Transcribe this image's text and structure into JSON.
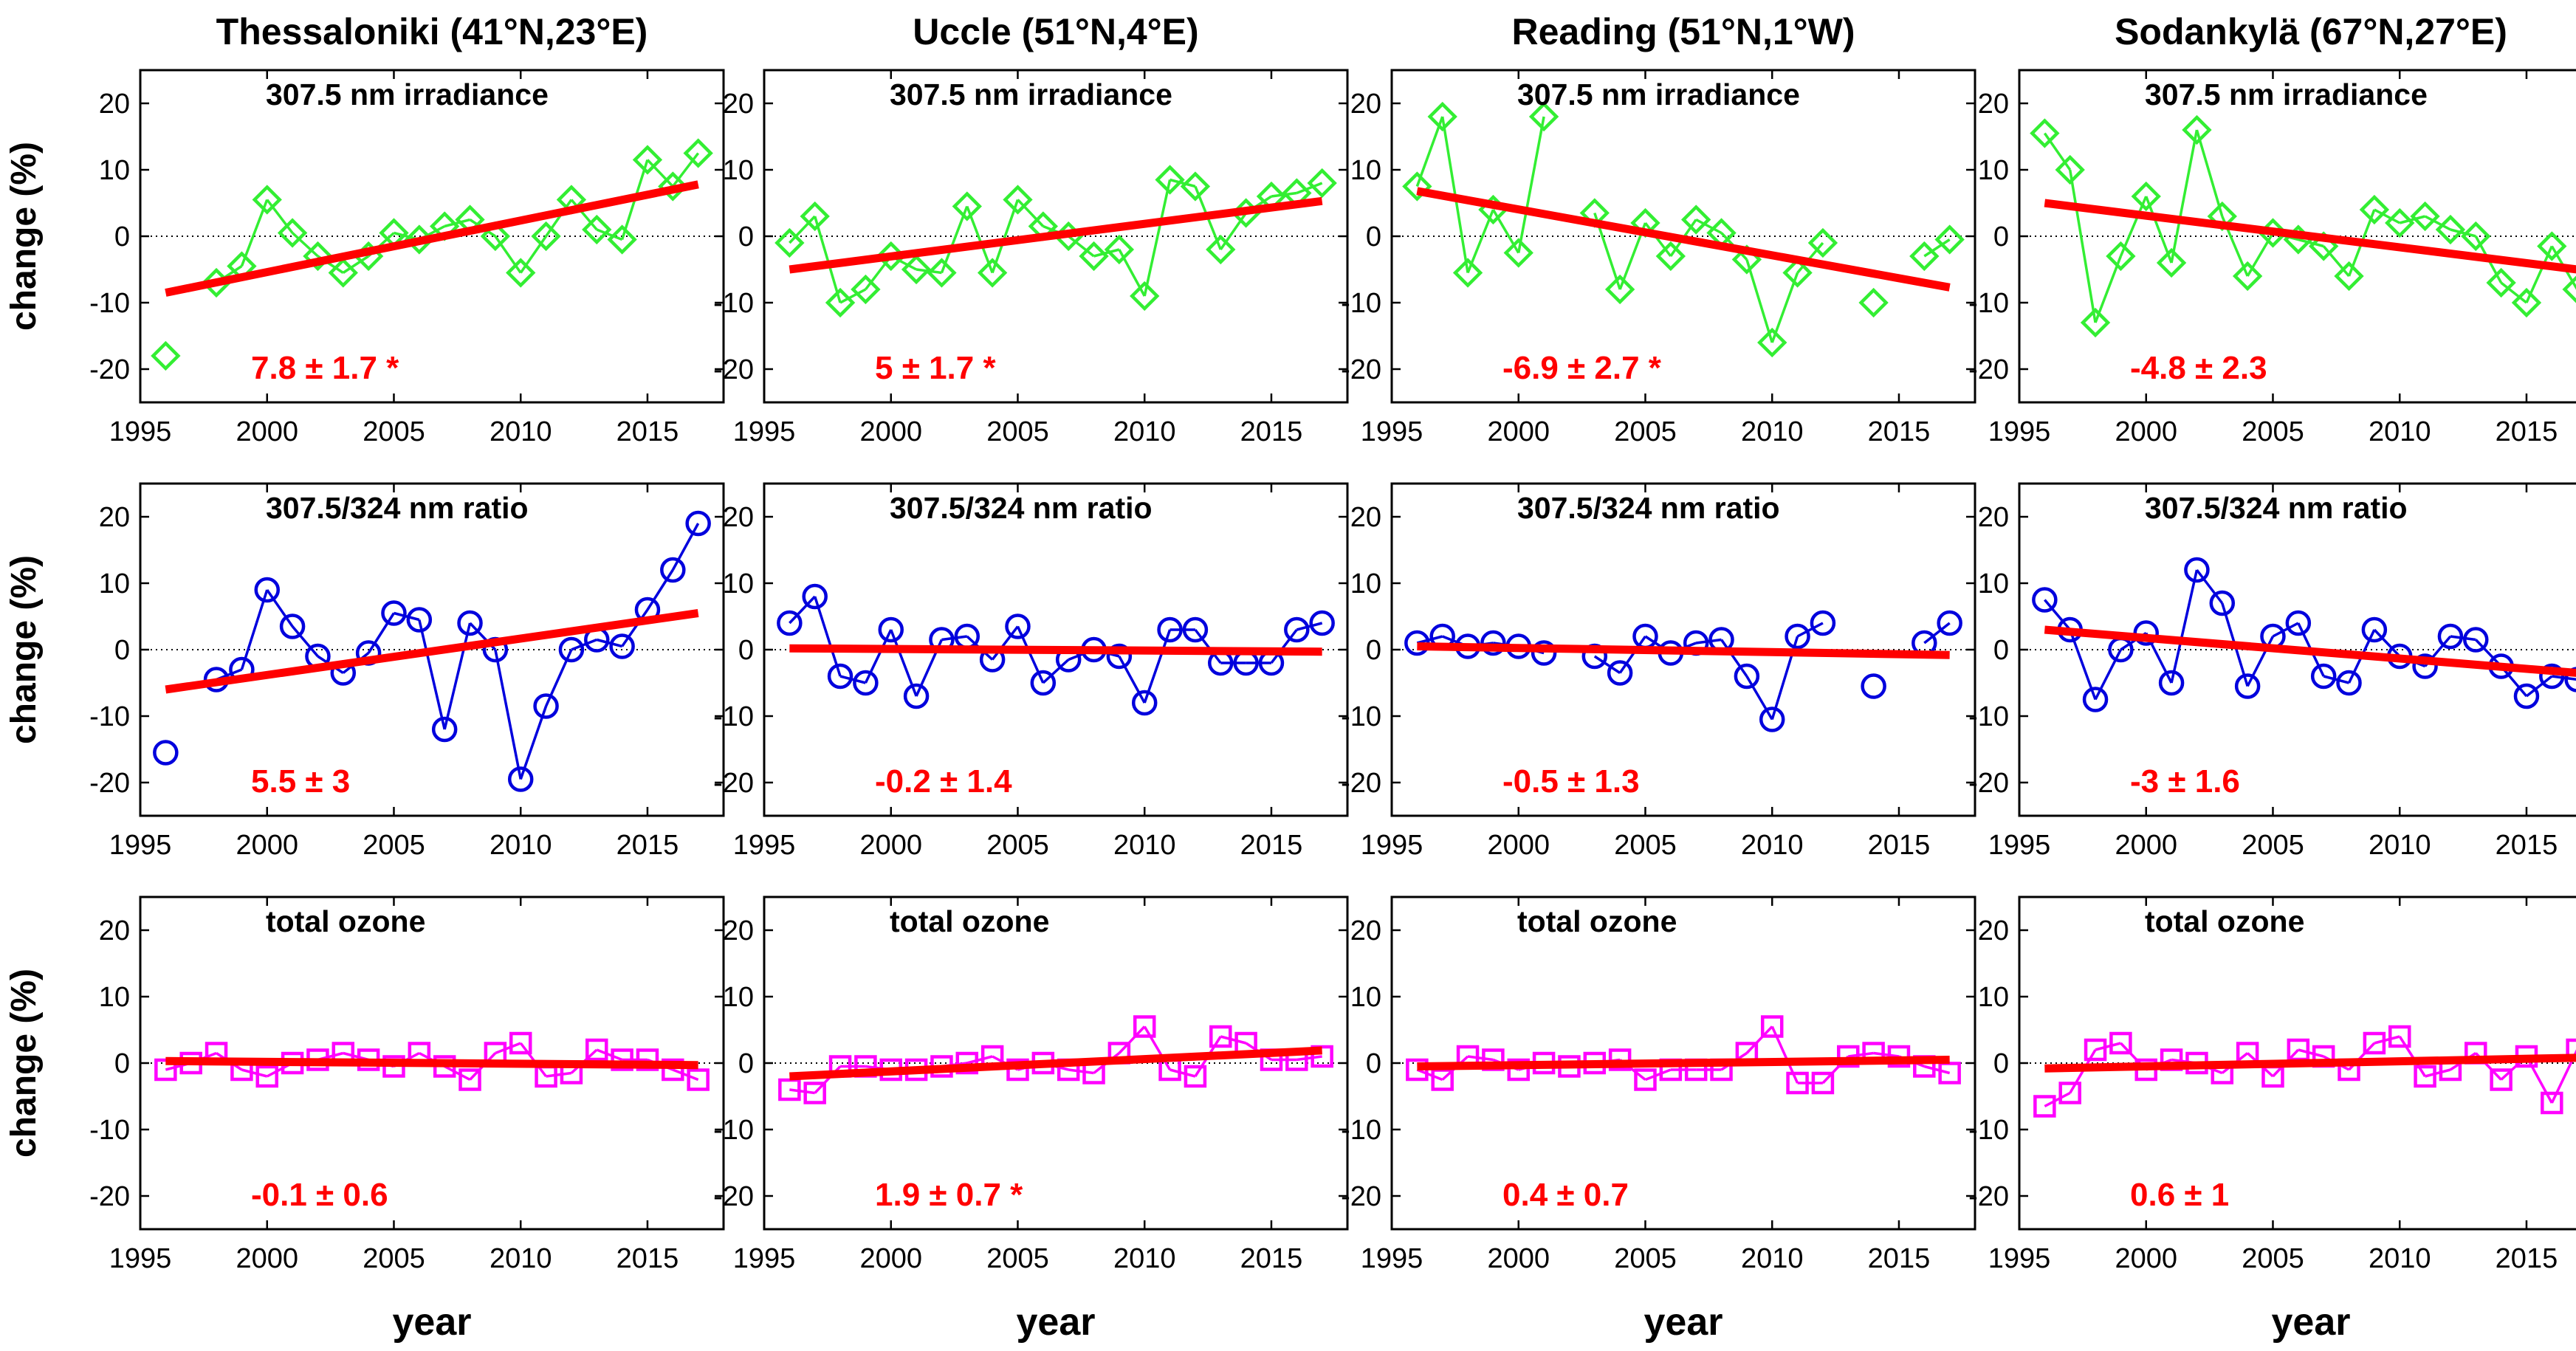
{
  "figure": {
    "xlabel": "year",
    "ylabel": "change (%)",
    "colors": {
      "irradiance": "#33ee33",
      "ratio": "#0000dd",
      "ozone": "#ff00ff",
      "trend": "#ff0000",
      "trend_text": "#ff0000",
      "axis": "#000000"
    }
  },
  "chart_data": [
    {
      "type": "line",
      "row": 0,
      "col": 0,
      "station": "Thessaloniki (41°N,23°E)",
      "variable": "307.5 nm irradiance",
      "marker": "diamond",
      "color": "#33ee33",
      "trend_label": "7.8 ± 1.7 *",
      "trend_line": [
        [
          1996,
          -8.5
        ],
        [
          2017,
          7.8
        ]
      ],
      "xlim": [
        1995,
        2018
      ],
      "ylim": [
        -25,
        25
      ],
      "xticks": [
        1995,
        2000,
        2005,
        2010,
        2015
      ],
      "yticks": [
        -20,
        -10,
        0,
        10,
        20
      ],
      "x": [
        1996,
        1998,
        1999,
        2000,
        2001,
        2002,
        2003,
        2004,
        2005,
        2006,
        2007,
        2008,
        2009,
        2010,
        2011,
        2012,
        2013,
        2014,
        2015,
        2016,
        2017
      ],
      "y": [
        -18,
        -7,
        -4.5,
        5.5,
        0.5,
        -3,
        -5.5,
        -3,
        0.5,
        -0.5,
        1.5,
        2.5,
        0,
        -5.5,
        0,
        5.5,
        1,
        -0.5,
        11.5,
        7.5,
        12.5
      ],
      "connect": [
        false,
        false,
        true,
        true,
        true,
        true,
        true,
        true,
        true,
        true,
        true,
        true,
        true,
        true,
        true,
        true,
        true,
        true,
        true,
        true,
        true
      ]
    },
    {
      "type": "line",
      "row": 0,
      "col": 1,
      "station": "Uccle (51°N,4°E)",
      "variable": "307.5 nm irradiance",
      "marker": "diamond",
      "color": "#33ee33",
      "trend_label": "5 ± 1.7 *",
      "trend_line": [
        [
          1996,
          -5
        ],
        [
          2017,
          5.3
        ]
      ],
      "xlim": [
        1995,
        2018
      ],
      "ylim": [
        -25,
        25
      ],
      "xticks": [
        1995,
        2000,
        2005,
        2010,
        2015
      ],
      "yticks": [
        -20,
        -10,
        0,
        10,
        20
      ],
      "x": [
        1996,
        1997,
        1998,
        1999,
        2000,
        2001,
        2002,
        2003,
        2004,
        2005,
        2006,
        2007,
        2008,
        2009,
        2010,
        2011,
        2012,
        2013,
        2014,
        2015,
        2016,
        2017
      ],
      "y": [
        -1,
        3,
        -10,
        -8,
        -3,
        -5,
        -5.5,
        4.5,
        -5.5,
        5.5,
        1.5,
        0,
        -3,
        -2,
        -9,
        8.5,
        7.5,
        -2,
        3.5,
        6,
        6.5,
        8
      ],
      "connect": [
        false,
        true,
        true,
        true,
        true,
        true,
        true,
        true,
        true,
        true,
        true,
        true,
        true,
        true,
        true,
        true,
        true,
        true,
        true,
        true,
        true,
        true
      ]
    },
    {
      "type": "line",
      "row": 0,
      "col": 2,
      "station": "Reading (51°N,1°W)",
      "variable": "307.5 nm irradiance",
      "marker": "diamond",
      "color": "#33ee33",
      "trend_label": "-6.9 ± 2.7 *",
      "trend_line": [
        [
          1996,
          6.8
        ],
        [
          2017,
          -7.7
        ]
      ],
      "xlim": [
        1995,
        2018
      ],
      "ylim": [
        -25,
        25
      ],
      "xticks": [
        1995,
        2000,
        2005,
        2010,
        2015
      ],
      "yticks": [
        -20,
        -10,
        0,
        10,
        20
      ],
      "x": [
        1996,
        1997,
        1998,
        1999,
        2000,
        2001,
        2003,
        2004,
        2005,
        2006,
        2007,
        2008,
        2009,
        2010,
        2011,
        2012,
        2014,
        2016,
        2017
      ],
      "y": [
        7.5,
        18,
        -5.5,
        4,
        -2.5,
        18,
        3.5,
        -8,
        2,
        -3,
        2.5,
        0.5,
        -3.5,
        -16,
        -5.5,
        -1,
        -10,
        -3,
        -0.5
      ],
      "connect": [
        false,
        true,
        true,
        true,
        true,
        true,
        false,
        true,
        true,
        true,
        true,
        true,
        true,
        true,
        true,
        true,
        false,
        false,
        true
      ]
    },
    {
      "type": "line",
      "row": 0,
      "col": 3,
      "station": "Sodankylä (67°N,27°E)",
      "variable": "307.5 nm irradiance",
      "marker": "diamond",
      "color": "#33ee33",
      "trend_label": "-4.8 ± 2.3",
      "trend_line": [
        [
          1996,
          5
        ],
        [
          2017,
          -5
        ]
      ],
      "xlim": [
        1995,
        2018
      ],
      "ylim": [
        -25,
        25
      ],
      "xticks": [
        1995,
        2000,
        2005,
        2010,
        2015
      ],
      "yticks": [
        -20,
        -10,
        0,
        10,
        20
      ],
      "x": [
        1996,
        1997,
        1998,
        1999,
        2000,
        2001,
        2002,
        2003,
        2004,
        2005,
        2006,
        2007,
        2008,
        2009,
        2010,
        2011,
        2012,
        2013,
        2014,
        2015,
        2016,
        2017
      ],
      "y": [
        15.5,
        10,
        -13,
        -3,
        6,
        -4,
        16,
        3,
        -6,
        0.5,
        -0.5,
        -1.5,
        -6,
        4,
        2,
        3,
        1,
        0,
        -7,
        -10,
        -1.5,
        -8
      ],
      "connect": [
        false,
        true,
        true,
        true,
        true,
        true,
        true,
        true,
        true,
        true,
        true,
        true,
        true,
        true,
        true,
        true,
        true,
        true,
        true,
        true,
        true,
        true
      ]
    },
    {
      "type": "line",
      "row": 1,
      "col": 0,
      "station": "Thessaloniki (41°N,23°E)",
      "variable": "307.5/324 nm ratio",
      "marker": "circle",
      "color": "#0000dd",
      "trend_label": "5.5 ± 3",
      "trend_line": [
        [
          1996,
          -6
        ],
        [
          2017,
          5.5
        ]
      ],
      "xlim": [
        1995,
        2018
      ],
      "ylim": [
        -25,
        25
      ],
      "xticks": [
        1995,
        2000,
        2005,
        2010,
        2015
      ],
      "yticks": [
        -20,
        -10,
        0,
        10,
        20
      ],
      "x": [
        1996,
        1998,
        1999,
        2000,
        2001,
        2002,
        2003,
        2004,
        2005,
        2006,
        2007,
        2008,
        2009,
        2010,
        2011,
        2012,
        2013,
        2014,
        2015,
        2016,
        2017
      ],
      "y": [
        -15.5,
        -4.5,
        -3,
        9,
        3.5,
        -1,
        -3.5,
        -0.5,
        5.5,
        4.5,
        -12,
        4,
        0,
        -19.5,
        -8.5,
        0,
        1.5,
        0.5,
        6,
        12,
        19
      ],
      "connect": [
        false,
        false,
        true,
        true,
        true,
        true,
        true,
        true,
        true,
        true,
        true,
        true,
        true,
        true,
        true,
        true,
        true,
        true,
        true,
        true,
        true
      ]
    },
    {
      "type": "line",
      "row": 1,
      "col": 1,
      "station": "Uccle (51°N,4°E)",
      "variable": "307.5/324 nm ratio",
      "marker": "circle",
      "color": "#0000dd",
      "trend_label": "-0.2 ± 1.4",
      "trend_line": [
        [
          1996,
          0.2
        ],
        [
          2017,
          -0.3
        ]
      ],
      "xlim": [
        1995,
        2018
      ],
      "ylim": [
        -25,
        25
      ],
      "xticks": [
        1995,
        2000,
        2005,
        2010,
        2015
      ],
      "yticks": [
        -20,
        -10,
        0,
        10,
        20
      ],
      "x": [
        1996,
        1997,
        1998,
        1999,
        2000,
        2001,
        2002,
        2003,
        2004,
        2005,
        2006,
        2007,
        2008,
        2009,
        2010,
        2011,
        2012,
        2013,
        2014,
        2015,
        2016,
        2017
      ],
      "y": [
        4,
        8,
        -4,
        -5,
        3,
        -7,
        1.5,
        2,
        -1.5,
        3.5,
        -5,
        -1.5,
        0,
        -1,
        -8,
        3,
        3,
        -2,
        -2,
        -2,
        3,
        4
      ],
      "connect": [
        false,
        true,
        true,
        true,
        true,
        true,
        true,
        true,
        true,
        true,
        true,
        true,
        true,
        true,
        true,
        true,
        true,
        true,
        true,
        true,
        true,
        true
      ]
    },
    {
      "type": "line",
      "row": 1,
      "col": 2,
      "station": "Reading (51°N,1°W)",
      "variable": "307.5/324 nm ratio",
      "marker": "circle",
      "color": "#0000dd",
      "trend_label": "-0.5 ± 1.3",
      "trend_line": [
        [
          1996,
          0.5
        ],
        [
          2017,
          -0.8
        ]
      ],
      "xlim": [
        1995,
        2018
      ],
      "ylim": [
        -25,
        25
      ],
      "xticks": [
        1995,
        2000,
        2005,
        2010,
        2015
      ],
      "yticks": [
        -20,
        -10,
        0,
        10,
        20
      ],
      "x": [
        1996,
        1997,
        1998,
        1999,
        2000,
        2001,
        2003,
        2004,
        2005,
        2006,
        2007,
        2008,
        2009,
        2010,
        2011,
        2012,
        2014,
        2016,
        2017
      ],
      "y": [
        1,
        2,
        0.5,
        1,
        0.5,
        -0.5,
        -1,
        -3.5,
        2,
        -0.5,
        1,
        1.5,
        -4,
        -10.5,
        2,
        4,
        -5.5,
        1,
        4
      ],
      "connect": [
        false,
        true,
        true,
        true,
        true,
        true,
        false,
        true,
        true,
        true,
        true,
        true,
        true,
        true,
        true,
        true,
        false,
        false,
        true
      ]
    },
    {
      "type": "line",
      "row": 1,
      "col": 3,
      "station": "Sodankylä (67°N,27°E)",
      "variable": "307.5/324 nm ratio",
      "marker": "circle",
      "color": "#0000dd",
      "trend_label": "-3 ± 1.6",
      "trend_line": [
        [
          1996,
          3
        ],
        [
          2017,
          -3.5
        ]
      ],
      "xlim": [
        1995,
        2018
      ],
      "ylim": [
        -25,
        25
      ],
      "xticks": [
        1995,
        2000,
        2005,
        2010,
        2015
      ],
      "yticks": [
        -20,
        -10,
        0,
        10,
        20
      ],
      "x": [
        1996,
        1997,
        1998,
        1999,
        2000,
        2001,
        2002,
        2003,
        2004,
        2005,
        2006,
        2007,
        2008,
        2009,
        2010,
        2011,
        2012,
        2013,
        2014,
        2015,
        2016,
        2017
      ],
      "y": [
        7.5,
        3,
        -7.5,
        0,
        2.5,
        -5,
        12,
        7,
        -5.5,
        2,
        4,
        -4,
        -5,
        3,
        -1,
        -2.5,
        2,
        1.5,
        -2.5,
        -7,
        -4,
        -4.5
      ],
      "connect": [
        false,
        true,
        true,
        true,
        true,
        true,
        true,
        true,
        true,
        true,
        true,
        true,
        true,
        true,
        true,
        true,
        true,
        true,
        true,
        true,
        true,
        true
      ]
    },
    {
      "type": "line",
      "row": 2,
      "col": 0,
      "station": "Thessaloniki (41°N,23°E)",
      "variable": "total ozone",
      "marker": "square",
      "color": "#ff00ff",
      "trend_label": "-0.1 ± 0.6",
      "trend_line": [
        [
          1996,
          0.3
        ],
        [
          2017,
          -0.3
        ]
      ],
      "xlim": [
        1995,
        2018
      ],
      "ylim": [
        -25,
        25
      ],
      "xticks": [
        1995,
        2000,
        2005,
        2010,
        2015
      ],
      "yticks": [
        -20,
        -10,
        0,
        10,
        20
      ],
      "x": [
        1996,
        1997,
        1998,
        1999,
        2000,
        2001,
        2002,
        2003,
        2004,
        2005,
        2006,
        2007,
        2008,
        2009,
        2010,
        2011,
        2012,
        2013,
        2014,
        2015,
        2016,
        2017
      ],
      "y": [
        -1,
        0,
        1.5,
        -1,
        -2,
        0,
        0.5,
        1.5,
        0.5,
        -0.5,
        1.5,
        -0.5,
        -2.5,
        1.5,
        3,
        -2,
        -1.5,
        2,
        0.5,
        0.5,
        -1,
        -2.5
      ],
      "connect": [
        false,
        true,
        true,
        true,
        true,
        true,
        true,
        true,
        true,
        true,
        true,
        true,
        true,
        true,
        true,
        true,
        true,
        true,
        true,
        true,
        true,
        true
      ]
    },
    {
      "type": "line",
      "row": 2,
      "col": 1,
      "station": "Uccle (51°N,4°E)",
      "variable": "total ozone",
      "marker": "square",
      "color": "#ff00ff",
      "trend_label": "1.9 ± 0.7 *",
      "trend_line": [
        [
          1996,
          -2
        ],
        [
          2017,
          1.9
        ]
      ],
      "xlim": [
        1995,
        2018
      ],
      "ylim": [
        -25,
        25
      ],
      "xticks": [
        1995,
        2000,
        2005,
        2010,
        2015
      ],
      "yticks": [
        -20,
        -10,
        0,
        10,
        20
      ],
      "x": [
        1996,
        1997,
        1998,
        1999,
        2000,
        2001,
        2002,
        2003,
        2004,
        2005,
        2006,
        2007,
        2008,
        2009,
        2010,
        2011,
        2012,
        2013,
        2014,
        2015,
        2016,
        2017
      ],
      "y": [
        -4,
        -4.5,
        -0.5,
        -0.5,
        -1,
        -1,
        -0.5,
        0,
        1,
        -1,
        0,
        -1,
        -1.5,
        1.5,
        5.5,
        -1,
        -2,
        4,
        3,
        0.5,
        0.5,
        1
      ],
      "connect": [
        false,
        true,
        true,
        true,
        true,
        true,
        true,
        true,
        true,
        true,
        true,
        true,
        true,
        true,
        true,
        true,
        true,
        true,
        true,
        true,
        true,
        true
      ]
    },
    {
      "type": "line",
      "row": 2,
      "col": 2,
      "station": "Reading (51°N,1°W)",
      "variable": "total ozone",
      "marker": "square",
      "color": "#ff00ff",
      "trend_label": "0.4 ± 0.7",
      "trend_line": [
        [
          1996,
          -0.5
        ],
        [
          2017,
          0.5
        ]
      ],
      "xlim": [
        1995,
        2018
      ],
      "ylim": [
        -25,
        25
      ],
      "xticks": [
        1995,
        2000,
        2005,
        2010,
        2015
      ],
      "yticks": [
        -20,
        -10,
        0,
        10,
        20
      ],
      "x": [
        1996,
        1997,
        1998,
        1999,
        2000,
        2001,
        2002,
        2003,
        2004,
        2005,
        2006,
        2007,
        2008,
        2009,
        2010,
        2011,
        2012,
        2013,
        2014,
        2015,
        2016,
        2017
      ],
      "y": [
        -1,
        -2.5,
        1,
        0.5,
        -1,
        0,
        -0.5,
        0,
        0.5,
        -2.5,
        -1,
        -1,
        -1,
        1.5,
        5.5,
        -3,
        -3,
        1,
        1.5,
        1,
        -0.5,
        -1.5
      ],
      "connect": [
        false,
        true,
        true,
        true,
        true,
        true,
        true,
        true,
        true,
        true,
        true,
        true,
        true,
        true,
        true,
        true,
        true,
        true,
        true,
        true,
        true,
        true
      ]
    },
    {
      "type": "line",
      "row": 2,
      "col": 3,
      "station": "Sodankylä (67°N,27°E)",
      "variable": "total ozone",
      "marker": "square",
      "color": "#ff00ff",
      "trend_label": "0.6 ± 1",
      "trend_line": [
        [
          1996,
          -0.8
        ],
        [
          2017,
          0.8
        ]
      ],
      "xlim": [
        1995,
        2018
      ],
      "ylim": [
        -25,
        25
      ],
      "xticks": [
        1995,
        2000,
        2005,
        2010,
        2015
      ],
      "yticks": [
        -20,
        -10,
        0,
        10,
        20
      ],
      "x": [
        1996,
        1997,
        1998,
        1999,
        2000,
        2001,
        2002,
        2003,
        2004,
        2005,
        2006,
        2007,
        2008,
        2009,
        2010,
        2011,
        2012,
        2013,
        2014,
        2015,
        2016,
        2017
      ],
      "y": [
        -6.5,
        -4.5,
        2,
        3,
        -1,
        0.5,
        0,
        -1.5,
        1.5,
        -2,
        2,
        1,
        -1,
        3,
        4,
        -2,
        -1,
        1.5,
        -2.5,
        1,
        -6,
        2
      ],
      "connect": [
        false,
        true,
        true,
        true,
        true,
        true,
        true,
        true,
        true,
        true,
        true,
        true,
        true,
        true,
        true,
        true,
        true,
        true,
        true,
        true,
        true,
        true
      ]
    }
  ]
}
